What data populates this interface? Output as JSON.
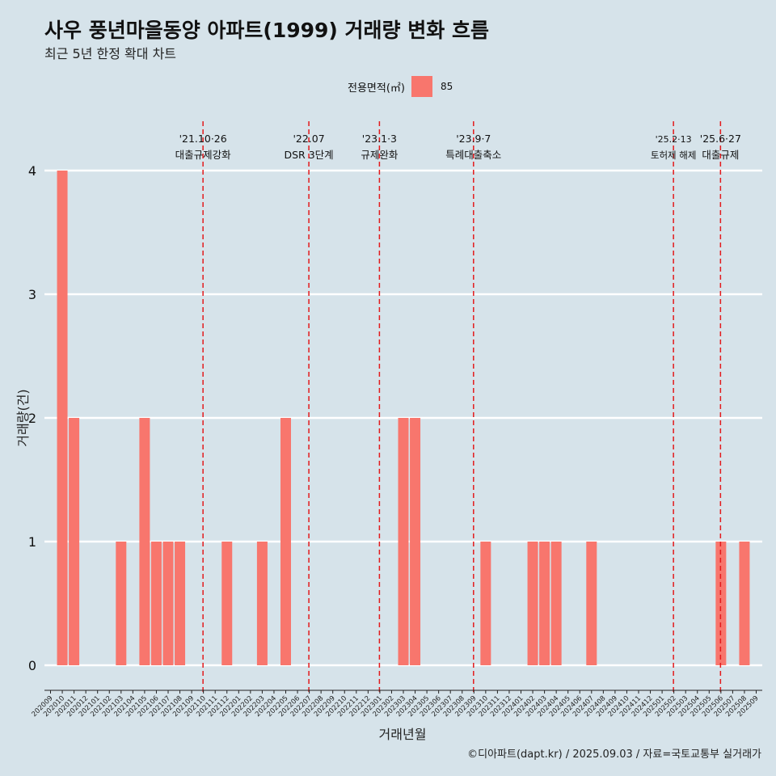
{
  "header": {
    "title": "사우 풍년마을동양 아파트(1999) 거래량 변화 흐름",
    "subtitle": "최근 5년 한정 확대 차트"
  },
  "legend": {
    "title": "전용면적(㎡)",
    "label": "85",
    "color": "#f8766d"
  },
  "caption": "©디아파트(dapt.kr) / 2025.09.03 / 자료=국토교통부 실거래가",
  "colors": {
    "background": "#d6e3ea",
    "bar": "#f8766d",
    "grid": "#ffffff",
    "event_line": "#e31a1c"
  },
  "chart_data": {
    "type": "bar",
    "xlabel": "거래년월",
    "ylabel": "거래량(건)",
    "ylim": [
      0,
      4
    ],
    "y_ticks": [
      0,
      1,
      2,
      3,
      4
    ],
    "grid": true,
    "legend_position": "top",
    "categories": [
      "202009",
      "202010",
      "202011",
      "202012",
      "202101",
      "202102",
      "202103",
      "202104",
      "202105",
      "202106",
      "202107",
      "202108",
      "202109",
      "202110",
      "202111",
      "202112",
      "202201",
      "202202",
      "202203",
      "202204",
      "202205",
      "202206",
      "202207",
      "202208",
      "202209",
      "202210",
      "202211",
      "202212",
      "202301",
      "202302",
      "202303",
      "202304",
      "202305",
      "202306",
      "202307",
      "202308",
      "202309",
      "202310",
      "202311",
      "202312",
      "202401",
      "202402",
      "202403",
      "202404",
      "202405",
      "202406",
      "202407",
      "202408",
      "202409",
      "202410",
      "202411",
      "202412",
      "202501",
      "202502",
      "202503",
      "202504",
      "202505",
      "202506",
      "202507",
      "202508",
      "202509"
    ],
    "series": [
      {
        "name": "85",
        "values": [
          0,
          4,
          2,
          0,
          0,
          0,
          1,
          0,
          2,
          1,
          1,
          1,
          0,
          0,
          0,
          1,
          0,
          0,
          1,
          0,
          2,
          0,
          0,
          0,
          0,
          0,
          0,
          0,
          0,
          0,
          2,
          2,
          0,
          0,
          0,
          0,
          0,
          1,
          0,
          0,
          0,
          1,
          1,
          1,
          0,
          0,
          1,
          0,
          0,
          0,
          0,
          0,
          0,
          0,
          0,
          0,
          0,
          1,
          0,
          1,
          0
        ]
      }
    ],
    "events": [
      {
        "date": "'21.10·26",
        "label": "대출규제강화",
        "x": "202110"
      },
      {
        "date": "'22.07",
        "label": "DSR 3단계",
        "x": "202207"
      },
      {
        "date": "'23.1·3",
        "label": "규제완화",
        "x": "202301"
      },
      {
        "date": "'23.9·7",
        "label": "특례대출축소",
        "x": "202309"
      },
      {
        "date": "'25.2·13",
        "label": "토허제 해제",
        "x": "202502"
      },
      {
        "date": "'25.6·27",
        "label": "대출규제",
        "x": "202506"
      }
    ]
  }
}
